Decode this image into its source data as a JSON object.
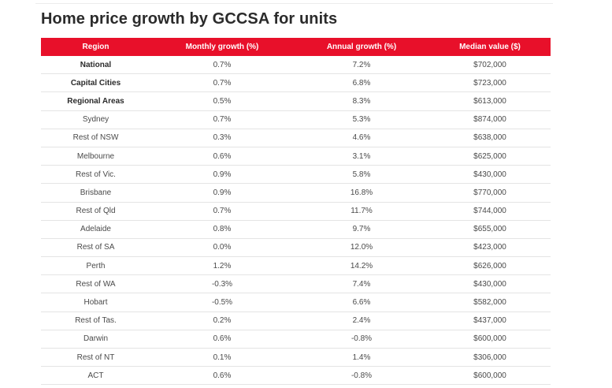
{
  "title": "Home price growth by GCCSA for units",
  "table": {
    "headers": [
      "Region",
      "Monthly growth (%)",
      "Annual growth (%)",
      "Median value ($)"
    ],
    "rows": [
      {
        "region": "National",
        "monthly": "0.7%",
        "annual": "7.2%",
        "median": "$702,000",
        "bold": true
      },
      {
        "region": "Capital Cities",
        "monthly": "0.7%",
        "annual": "6.8%",
        "median": "$723,000",
        "bold": true
      },
      {
        "region": "Regional Areas",
        "monthly": "0.5%",
        "annual": "8.3%",
        "median": "$613,000",
        "bold": true
      },
      {
        "region": "Sydney",
        "monthly": "0.7%",
        "annual": "5.3%",
        "median": "$874,000",
        "bold": false
      },
      {
        "region": "Rest of NSW",
        "monthly": "0.3%",
        "annual": "4.6%",
        "median": "$638,000",
        "bold": false
      },
      {
        "region": "Melbourne",
        "monthly": "0.6%",
        "annual": "3.1%",
        "median": "$625,000",
        "bold": false
      },
      {
        "region": "Rest of Vic.",
        "monthly": "0.9%",
        "annual": "5.8%",
        "median": "$430,000",
        "bold": false
      },
      {
        "region": "Brisbane",
        "monthly": "0.9%",
        "annual": "16.8%",
        "median": "$770,000",
        "bold": false
      },
      {
        "region": "Rest of Qld",
        "monthly": "0.7%",
        "annual": "11.7%",
        "median": "$744,000",
        "bold": false
      },
      {
        "region": "Adelaide",
        "monthly": "0.8%",
        "annual": "9.7%",
        "median": "$655,000",
        "bold": false
      },
      {
        "region": "Rest of SA",
        "monthly": "0.0%",
        "annual": "12.0%",
        "median": "$423,000",
        "bold": false
      },
      {
        "region": "Perth",
        "monthly": "1.2%",
        "annual": "14.2%",
        "median": "$626,000",
        "bold": false
      },
      {
        "region": "Rest of WA",
        "monthly": "-0.3%",
        "annual": "7.4%",
        "median": "$430,000",
        "bold": false
      },
      {
        "region": "Hobart",
        "monthly": "-0.5%",
        "annual": "6.6%",
        "median": "$582,000",
        "bold": false
      },
      {
        "region": "Rest of Tas.",
        "monthly": "0.2%",
        "annual": "2.4%",
        "median": "$437,000",
        "bold": false
      },
      {
        "region": "Darwin",
        "monthly": "0.6%",
        "annual": "-0.8%",
        "median": "$600,000",
        "bold": false
      },
      {
        "region": "Rest of NT",
        "monthly": "0.1%",
        "annual": "1.4%",
        "median": "$306,000",
        "bold": false
      },
      {
        "region": "ACT",
        "monthly": "0.6%",
        "annual": "-0.8%",
        "median": "$600,000",
        "bold": false
      }
    ]
  },
  "colors": {
    "header_bg": "#e8102a",
    "header_text": "#ffffff",
    "title_text": "#2b2b2b",
    "cell_text": "#4a4a4a",
    "row_border": "#e4e4e4"
  }
}
